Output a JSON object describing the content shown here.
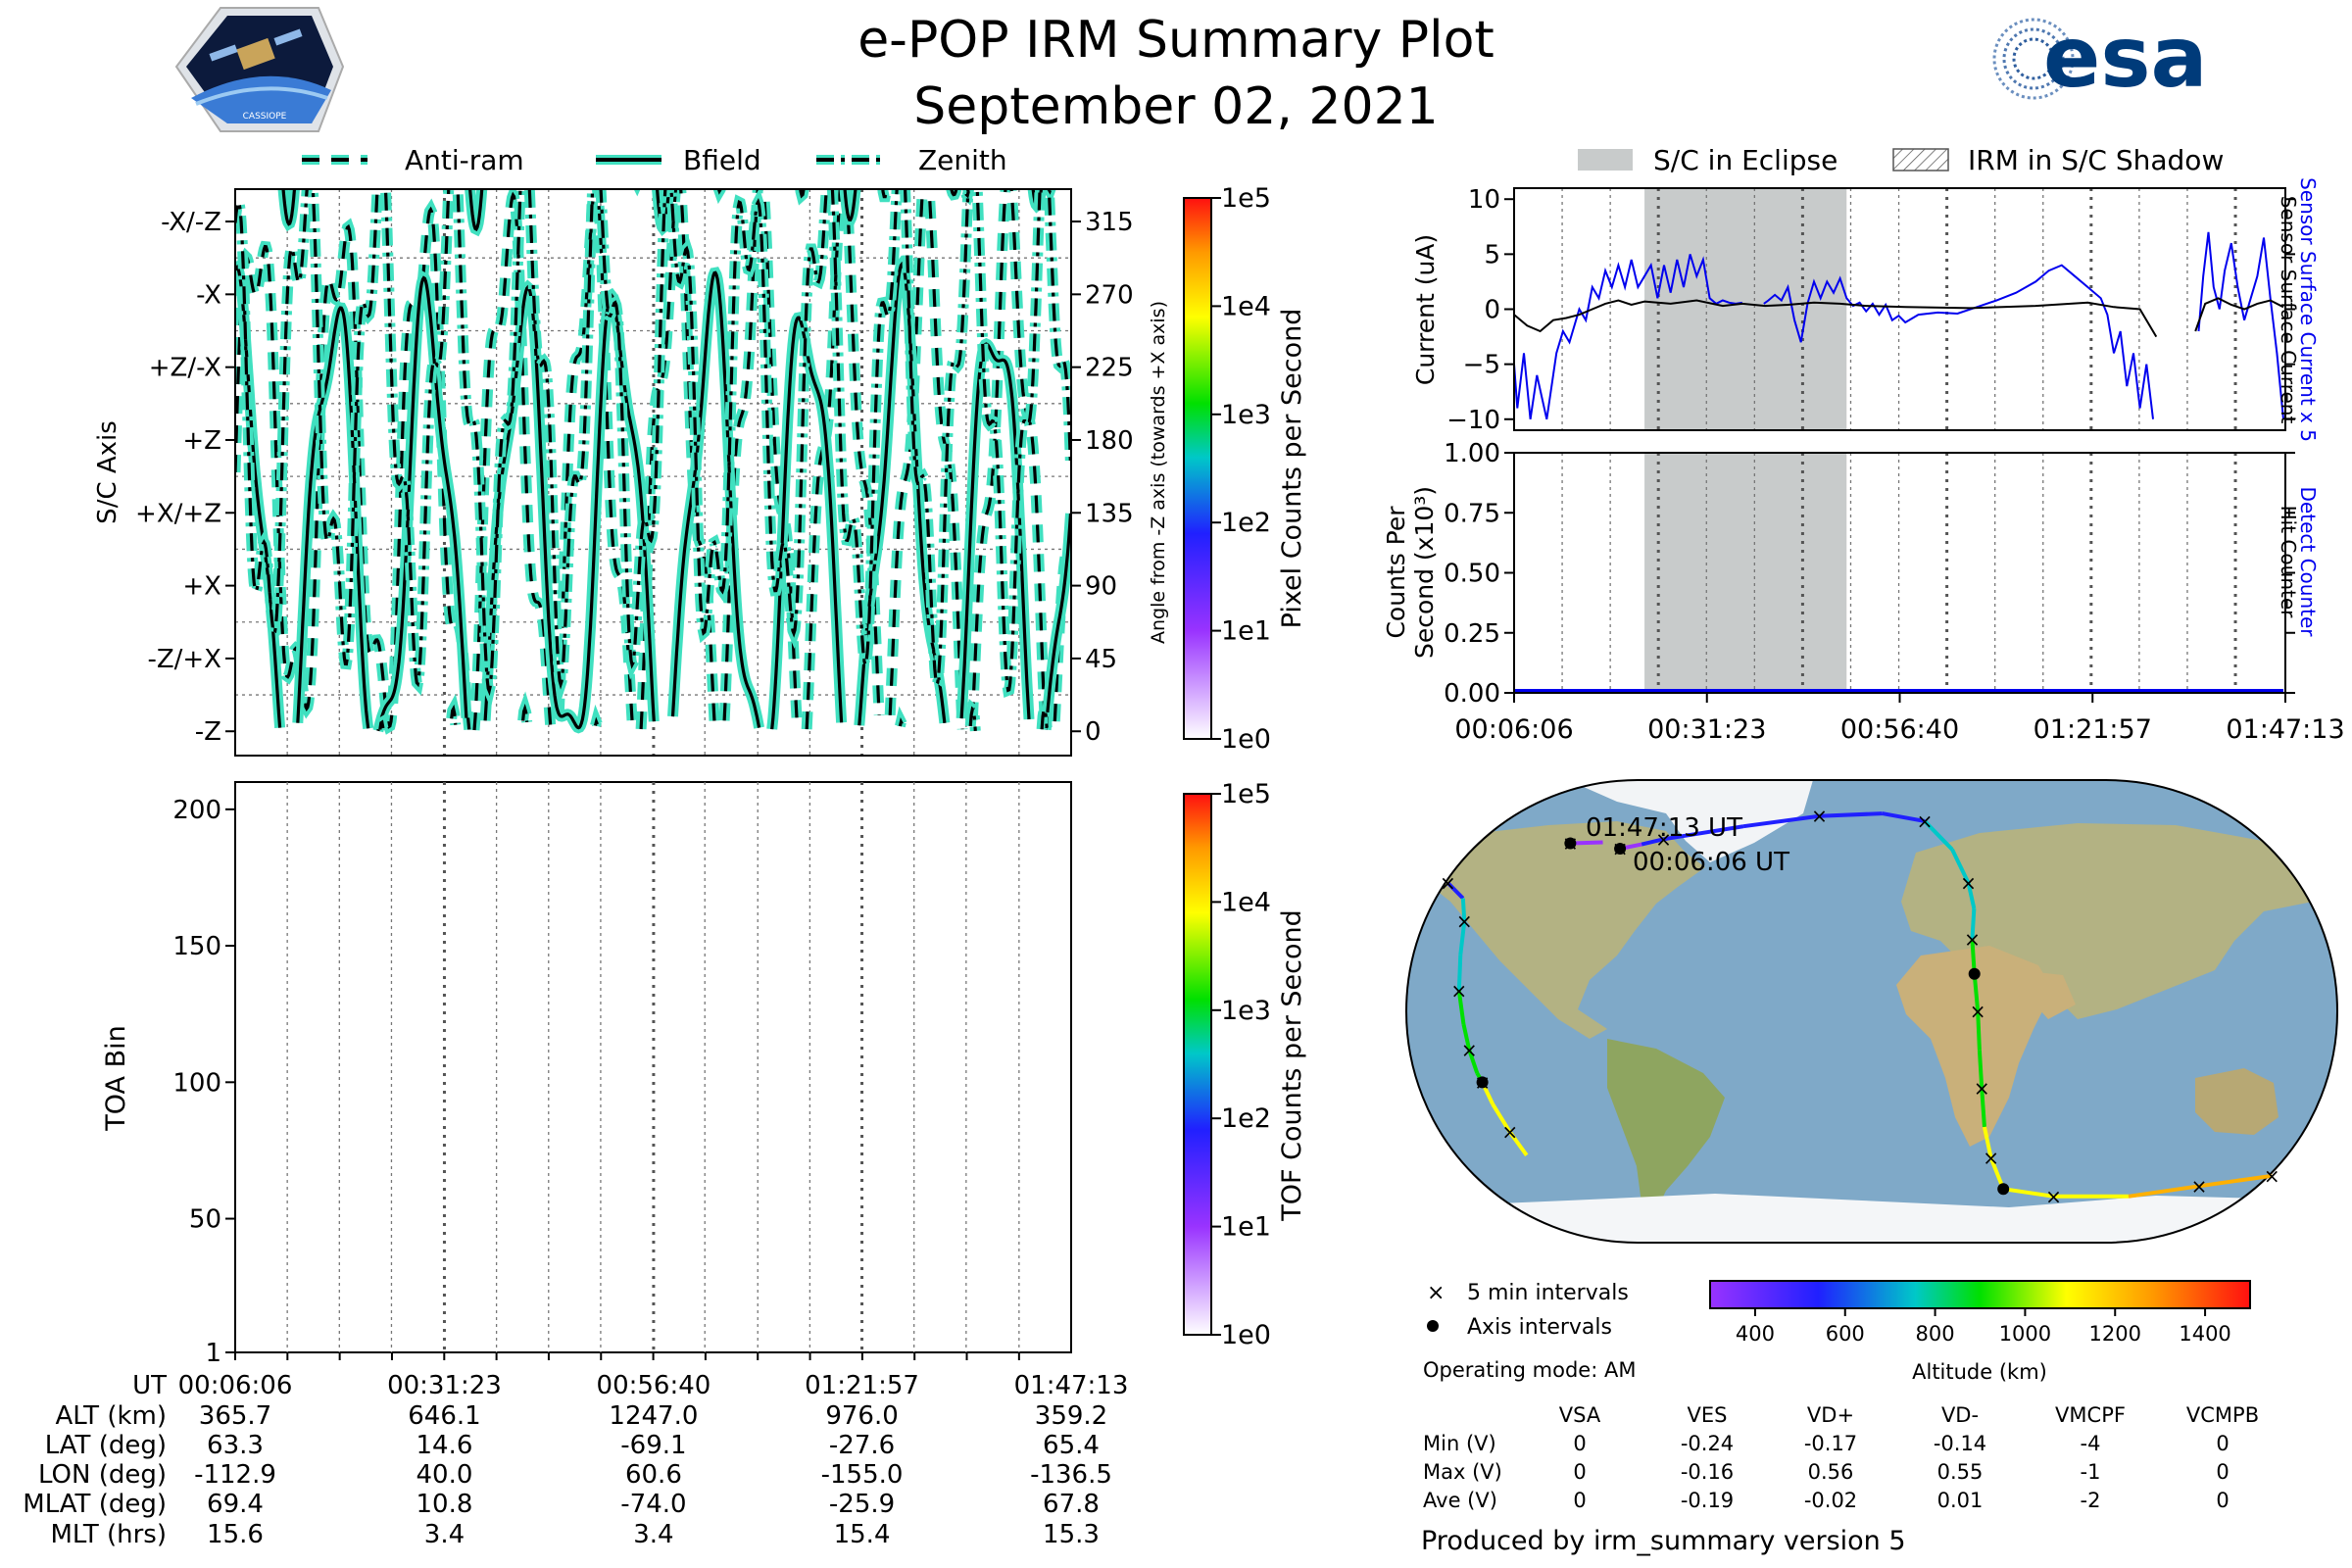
{
  "header": {
    "title": "e-POP IRM Summary Plot",
    "date": "September 02, 2021",
    "mission_logo_text": "CASSIOPE",
    "agency_logo_text": "esa"
  },
  "colors": {
    "trace_fill": "#40e0c0",
    "trace_line": "#000000",
    "eclipse": "#c8cbcb",
    "blue_series": "#0000ee",
    "ocean": "#7fa9c8",
    "land": "#b9b88a",
    "ice": "#f4f6f8",
    "esa_blue": "#003b7a"
  },
  "chart_data": [
    {
      "id": "sc-axis-panel",
      "type": "line",
      "legend": [
        "Anti-ram",
        "Bfield",
        "Zenith"
      ],
      "ylabel": "S/C Axis",
      "ylabel_right": "Angle from -Z axis (towards +X axis)",
      "yticks_left": [
        "-X/-Z",
        "-X",
        "+Z/-X",
        "+Z",
        "+X/+Z",
        "+X",
        "-Z/+X",
        "-Z"
      ],
      "yticks_right": [
        "315",
        "270",
        "225",
        "180",
        "135",
        "90",
        "45",
        "0"
      ],
      "ylim": [
        -15,
        335
      ],
      "colorbar": {
        "label": "Pixel Counts per Second",
        "ticks": [
          "1e0",
          "1e1",
          "1e2",
          "1e3",
          "1e4",
          "1e5"
        ]
      }
    },
    {
      "id": "toa-panel",
      "type": "heatmap",
      "ylabel": "TOA Bin",
      "yticks": [
        "1",
        "50",
        "100",
        "150",
        "200"
      ],
      "ylim": [
        1,
        210
      ],
      "colorbar": {
        "label": "TOF Counts per Second",
        "ticks": [
          "1e0",
          "1e1",
          "1e2",
          "1e3",
          "1e4",
          "1e5"
        ]
      }
    },
    {
      "id": "current-panel",
      "type": "line",
      "legend": [
        "S/C in Eclipse",
        "IRM in S/C Shadow"
      ],
      "ylabel": "Current (uA)",
      "ylabel_right": [
        "Sensor Surface Current x 5",
        "Sensor Surface Current"
      ],
      "yticks": [
        "10",
        "5",
        "0",
        "−5",
        "−10"
      ],
      "ylim": [
        -11,
        11
      ],
      "eclipse_minutes": [
        20,
        51
      ],
      "series": [
        {
          "name": "Sensor Surface Current x 5",
          "color": "blue",
          "points": [
            [
              0,
              -5
            ],
            [
              0.5,
              -9
            ],
            [
              1.5,
              -4
            ],
            [
              2.5,
              -10
            ],
            [
              3.5,
              -6
            ],
            [
              5,
              -10
            ],
            [
              6.5,
              -4
            ],
            [
              7.5,
              -2
            ],
            [
              8.5,
              -3
            ],
            [
              10,
              0
            ],
            [
              11,
              -1
            ],
            [
              12,
              2
            ],
            [
              13,
              1
            ],
            [
              14,
              3.5
            ],
            [
              15,
              2
            ],
            [
              16,
              4
            ],
            [
              17,
              2
            ],
            [
              18,
              4.5
            ],
            [
              19,
              2
            ],
            [
              20,
              3
            ],
            [
              21,
              4
            ],
            [
              22,
              1
            ],
            [
              23,
              4
            ],
            [
              24,
              1.5
            ],
            [
              25,
              4.5
            ],
            [
              26,
              2
            ],
            [
              27,
              5
            ],
            [
              28,
              3
            ],
            [
              29,
              4.5
            ],
            [
              30,
              1
            ],
            [
              31,
              0.5
            ],
            [
              32,
              0.8
            ],
            [
              33,
              0.6
            ],
            [
              34,
              0.5
            ],
            [
              35,
              0.6
            ]
          ]
        },
        {
          "name": "Sensor Surface Current x 5",
          "color": "blue",
          "points": [
            [
              38.3,
              0.5
            ],
            [
              39,
              0.8
            ],
            [
              40,
              1.3
            ],
            [
              41,
              0.8
            ],
            [
              42,
              2
            ],
            [
              43,
              -1
            ],
            [
              44,
              -3
            ],
            [
              45,
              0.5
            ],
            [
              46,
              2.5
            ],
            [
              47,
              1
            ],
            [
              48,
              2.5
            ],
            [
              49,
              1.5
            ],
            [
              50,
              2.8
            ],
            [
              51,
              1
            ],
            [
              52,
              0.3
            ],
            [
              53,
              0.6
            ],
            [
              54,
              -0.2
            ],
            [
              55,
              0.5
            ],
            [
              56,
              -0.5
            ],
            [
              57,
              0.4
            ],
            [
              58,
              -1
            ],
            [
              59,
              -0.6
            ],
            [
              60,
              -1.2
            ],
            [
              62,
              -0.5
            ],
            [
              65,
              -0.3
            ],
            [
              68,
              -0.4
            ],
            [
              71,
              0.2
            ],
            [
              74,
              0.8
            ],
            [
              77,
              1.5
            ],
            [
              80,
              2.5
            ],
            [
              82,
              3.5
            ],
            [
              84,
              4
            ],
            [
              86,
              3
            ],
            [
              88,
              2
            ],
            [
              90,
              1
            ],
            [
              91,
              -0.5
            ],
            [
              92,
              -4
            ],
            [
              93,
              -2
            ],
            [
              94,
              -7
            ],
            [
              95,
              -4
            ],
            [
              96,
              -9
            ],
            [
              97,
              -5
            ],
            [
              98,
              -10
            ]
          ]
        },
        {
          "name": "Sensor Surface Current x 5",
          "color": "blue",
          "points": [
            [
              105,
              -2
            ],
            [
              105.7,
              3
            ],
            [
              106.5,
              7
            ],
            [
              107.3,
              2
            ],
            [
              108.2,
              0
            ],
            [
              109,
              3.5
            ],
            [
              110,
              6
            ],
            [
              111,
              2
            ],
            [
              112,
              -1
            ],
            [
              113,
              1
            ],
            [
              114,
              3
            ],
            [
              115,
              6.5
            ],
            [
              116,
              1
            ],
            [
              117,
              -4
            ],
            [
              118,
              -10
            ]
          ]
        },
        {
          "name": "Sensor Surface Current",
          "color": "black",
          "points": [
            [
              0,
              -0.5
            ],
            [
              2,
              -1.5
            ],
            [
              4,
              -2
            ],
            [
              6,
              -1
            ],
            [
              8,
              -0.8
            ],
            [
              10,
              -0.5
            ],
            [
              12,
              0
            ],
            [
              14,
              0.5
            ],
            [
              16,
              0.8
            ],
            [
              18,
              0.4
            ],
            [
              20,
              0.7
            ],
            [
              24,
              0.5
            ],
            [
              28,
              0.8
            ],
            [
              32,
              0.3
            ],
            [
              35,
              0.5
            ],
            [
              38.5,
              0.3
            ],
            [
              42,
              0.4
            ],
            [
              46,
              0.6
            ],
            [
              50,
              0.5
            ],
            [
              54,
              0.3
            ],
            [
              60,
              0.2
            ],
            [
              70,
              0.1
            ],
            [
              80,
              0.3
            ],
            [
              88,
              0.6
            ],
            [
              92,
              0.2
            ],
            [
              96,
              0
            ],
            [
              98.5,
              -2.5
            ]
          ]
        },
        {
          "name": "Sensor Surface Current",
          "color": "black",
          "points": [
            [
              104.5,
              -2
            ],
            [
              106,
              0.5
            ],
            [
              108,
              1
            ],
            [
              110,
              0.4
            ],
            [
              112,
              0
            ],
            [
              114,
              0.5
            ],
            [
              116,
              0.8
            ],
            [
              118,
              0.2
            ]
          ]
        }
      ]
    },
    {
      "id": "counts-panel",
      "type": "line",
      "ylabel": [
        "Counts Per",
        "Second (x10³)"
      ],
      "ylabel_right": [
        "Detect Counter",
        "Hit Counter"
      ],
      "yticks": [
        "1.00",
        "0.75",
        "0.50",
        "0.25",
        "0.00"
      ],
      "ylim": [
        0,
        1
      ],
      "xticks": [
        "00:06:06",
        "00:31:23",
        "00:56:40",
        "01:21:57",
        "01:47:13"
      ],
      "series": [
        {
          "name": "Detect Counter",
          "points": [
            [
              0,
              0
            ],
            [
              118,
              0
            ]
          ]
        }
      ]
    },
    {
      "id": "orbit-map",
      "type": "scatter",
      "annotations": [
        "01:47:13 UT",
        "00:06:06 UT"
      ],
      "legend": [
        "5 min intervals",
        "Axis intervals"
      ],
      "colorbar": {
        "label": "Altitude (km)",
        "ticks": [
          "400",
          "600",
          "800",
          "1000",
          "1200",
          "1400"
        ],
        "range": [
          300,
          1500
        ]
      },
      "track_lonlat": [
        [
          -112.9,
          63.3
        ],
        [
          -104,
          65
        ],
        [
          -95,
          67
        ],
        [
          -60,
          72
        ],
        [
          -25,
          76
        ],
        [
          5,
          77
        ],
        [
          25,
          74
        ],
        [
          36,
          63
        ],
        [
          41,
          50
        ],
        [
          42,
          40
        ],
        [
          40,
          28
        ],
        [
          40,
          14.6
        ],
        [
          41,
          0
        ],
        [
          42,
          -15
        ],
        [
          44,
          -30
        ],
        [
          47,
          -45
        ],
        [
          52,
          -57
        ],
        [
          60.6,
          -69.1
        ],
        [
          85,
          -72
        ],
        [
          120,
          -72
        ],
        [
          150,
          -68
        ],
        [
          165,
          -66
        ],
        [
          180,
          -64
        ]
      ],
      "track2_lonlat": [
        [
          -180,
          50
        ],
        [
          -170,
          44
        ],
        [
          -165,
          35
        ],
        [
          -162,
          22
        ],
        [
          -160,
          8
        ],
        [
          -158,
          -5
        ],
        [
          -157,
          -15
        ],
        [
          -156,
          -24
        ],
        [
          -155,
          -27.6
        ],
        [
          -154,
          -36
        ],
        [
          -152,
          -47
        ],
        [
          -150,
          -56
        ]
      ],
      "track3_lonlat": [
        [
          -136.5,
          65.4
        ],
        [
          -122,
          65.8
        ]
      ]
    }
  ],
  "time_labels": [
    "00:06:06",
    "00:31:23",
    "00:56:40",
    "01:21:57",
    "01:47:13"
  ],
  "ephemeris": {
    "headers": [
      "UT",
      "ALT (km)",
      "LAT (deg)",
      "LON (deg)",
      "MLAT (deg)",
      "MLT (hrs)"
    ],
    "rows": [
      [
        "365.7",
        "646.1",
        "1247.0",
        "976.0",
        "359.2"
      ],
      [
        "63.3",
        "14.6",
        "-69.1",
        "-27.6",
        "65.4"
      ],
      [
        "-112.9",
        "40.0",
        "60.6",
        "-155.0",
        "-136.5"
      ],
      [
        "69.4",
        "10.8",
        "-74.0",
        "-25.9",
        "67.8"
      ],
      [
        "15.6",
        "3.4",
        "3.4",
        "15.4",
        "15.3"
      ]
    ]
  },
  "operating_mode": "Operating mode: AM",
  "voltages": {
    "columns": [
      "VSA",
      "VES",
      "VD+",
      "VD-",
      "VMCPF",
      "VCMPB"
    ],
    "rows": [
      {
        "label": "Min (V)",
        "values": [
          "0",
          "-0.24",
          "-0.17",
          "-0.14",
          "-4",
          "0"
        ]
      },
      {
        "label": "Max (V)",
        "values": [
          "0",
          "-0.16",
          "0.56",
          "0.55",
          "-1",
          "0"
        ]
      },
      {
        "label": "Ave (V)",
        "values": [
          "0",
          "-0.19",
          "-0.02",
          "0.01",
          "-2",
          "0"
        ]
      }
    ]
  },
  "footer": "Produced by irm_summary version 5"
}
